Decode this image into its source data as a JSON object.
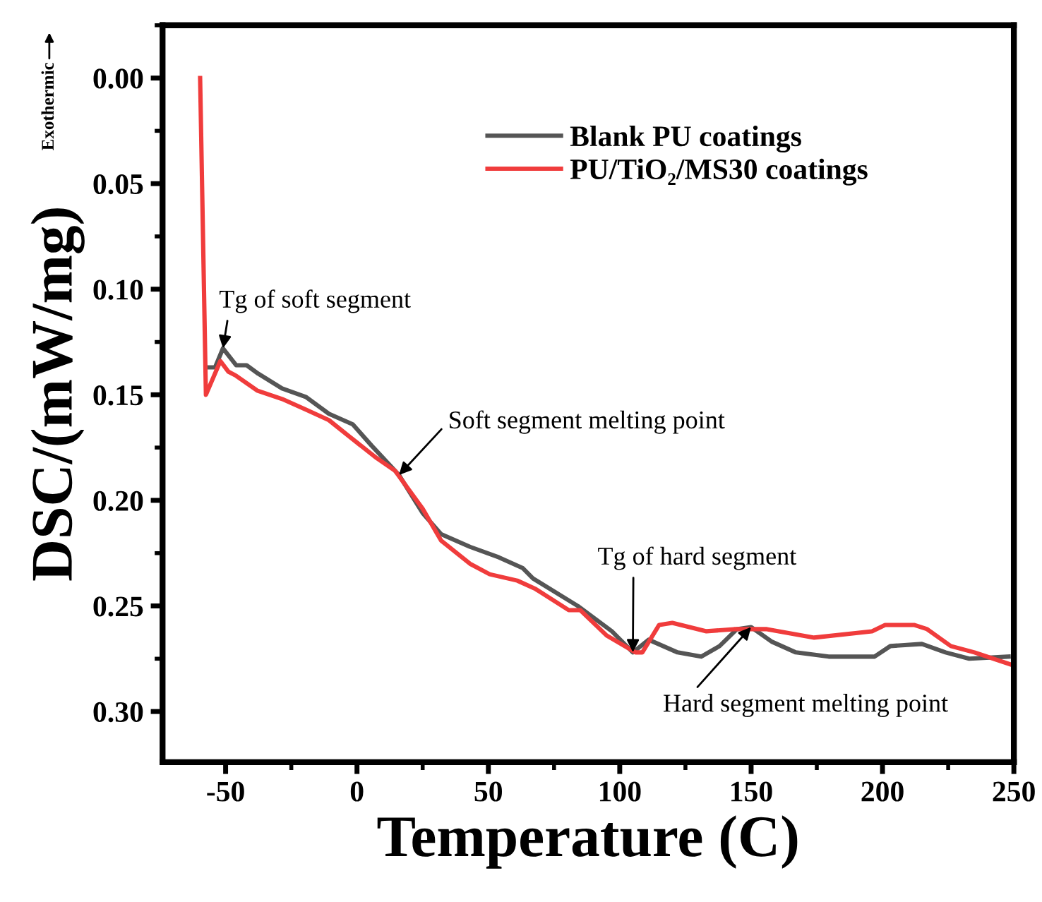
{
  "chart_data": {
    "type": "line",
    "xlabel": "Temperature (C)",
    "ylabel": "DSC/(mW/mg)",
    "xlim": [
      -74,
      250
    ],
    "xticks": [
      -50,
      0,
      50,
      100,
      150,
      200,
      250
    ],
    "ylim": [
      0.324,
      -0.025
    ],
    "yticks": [
      {
        "value": 0,
        "label": "0.00"
      },
      0.05,
      {
        "value": 0.1,
        "label": "0.10"
      },
      0.15,
      {
        "value": 0.2,
        "label": "0.20"
      },
      0.25,
      {
        "value": 0.3,
        "label": "0.30"
      }
    ],
    "grid": false,
    "legend": "top right",
    "line_style": "solid",
    "marker": "none",
    "series": [
      {
        "name": "Blank PU coatings",
        "color": "#555555",
        "x": [
          -57,
          -54,
          -51,
          -46,
          -42,
          -37.6,
          -28.5,
          -19.5,
          -10.7,
          -1.6,
          5.5,
          16,
          25,
          32,
          43,
          54,
          63,
          67,
          84,
          97,
          105,
          111,
          122,
          131,
          138,
          144.6,
          150,
          158,
          167,
          179.5,
          197,
          203,
          215,
          224,
          233,
          248
        ],
        "values": [
          0.137,
          0.137,
          0.128,
          0.136,
          0.136,
          0.14,
          0.147,
          0.151,
          0.159,
          0.164,
          0.174,
          0.188,
          0.206,
          0.216,
          0.222,
          0.227,
          0.232,
          0.237,
          0.25,
          0.262,
          0.272,
          0.266,
          0.272,
          0.274,
          0.269,
          0.261,
          0.26,
          0.267,
          0.272,
          0.274,
          0.274,
          0.269,
          0.268,
          0.272,
          0.275,
          0.274
        ]
      },
      {
        "name": "PU/TiO₂/MS30 coatings",
        "color": "#f03c3c",
        "x": [
          -59.7,
          -57.5,
          -52,
          -49,
          -46,
          -38,
          -28.5,
          -19.5,
          -10.7,
          -2.7,
          7.5,
          14.5,
          25,
          32,
          43,
          50.5,
          61,
          68,
          80.6,
          85,
          95,
          106,
          108.6,
          115,
          120,
          133,
          143.5,
          156,
          174,
          196,
          201,
          212,
          217,
          226,
          235,
          249.5
        ],
        "values": [
          0.0,
          0.15,
          0.134,
          0.139,
          0.141,
          0.148,
          0.152,
          0.157,
          0.162,
          0.17,
          0.18,
          0.186,
          0.204,
          0.219,
          0.23,
          0.235,
          0.238,
          0.242,
          0.252,
          0.252,
          0.264,
          0.272,
          0.272,
          0.259,
          0.258,
          0.262,
          0.261,
          0.261,
          0.265,
          0.262,
          0.259,
          0.259,
          0.261,
          0.269,
          0.272,
          0.278
        ]
      }
    ],
    "annotations": [
      {
        "text": "Tg of soft segment",
        "x": -51,
        "y": 0.128
      },
      {
        "text": "Soft segment melting point",
        "x": 16,
        "y": 0.188
      },
      {
        "text": "Tg of hard segment",
        "x": 105,
        "y": 0.272
      },
      {
        "text": "Hard segment melting point",
        "x": 150,
        "y": 0.26
      },
      "Exothermic"
    ]
  }
}
